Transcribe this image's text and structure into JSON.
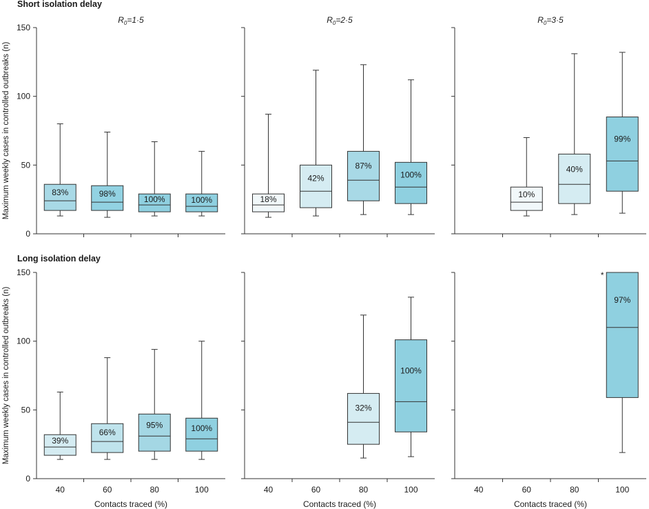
{
  "chart_data": [
    {
      "type": "box",
      "row_title": "Short isolation delay",
      "panel_title": {
        "base": "R",
        "sub": "0",
        "rest": "=1·5"
      },
      "xlabel": "Contacts traced (%)",
      "ylabel": "Maximum weekly cases in controlled outbreaks (n)",
      "ylim": [
        0,
        150
      ],
      "yticks": [
        "0",
        "50",
        "100",
        "150"
      ],
      "categories": [
        "40",
        "60",
        "80",
        "100"
      ],
      "boxes": [
        {
          "category": "40",
          "min": 13,
          "q1": 17,
          "median": 24,
          "q3": 36,
          "max": 80,
          "label": "83%",
          "fill": "#a8d9e6"
        },
        {
          "category": "60",
          "min": 12,
          "q1": 17,
          "median": 23,
          "q3": 35,
          "max": 74,
          "label": "98%",
          "fill": "#92d2e2"
        },
        {
          "category": "80",
          "min": 13,
          "q1": 16,
          "median": 21,
          "q3": 29,
          "max": 67,
          "label": "100%",
          "fill": "#8fd0e0"
        },
        {
          "category": "100",
          "min": 13,
          "q1": 16,
          "median": 20,
          "q3": 29,
          "max": 60,
          "label": "100%",
          "fill": "#8fd0e0"
        }
      ]
    },
    {
      "type": "box",
      "row_title": "",
      "panel_title": {
        "base": "R",
        "sub": "0",
        "rest": "=2·5"
      },
      "xlabel": "Contacts traced (%)",
      "ylabel": "",
      "ylim": [
        0,
        150
      ],
      "yticks": [
        "0",
        "50",
        "100",
        "150"
      ],
      "categories": [
        "40",
        "60",
        "80",
        "100"
      ],
      "boxes": [
        {
          "category": "40",
          "min": 12,
          "q1": 16,
          "median": 21,
          "q3": 29,
          "max": 87,
          "label": "18%",
          "fill": "#f1f8fa"
        },
        {
          "category": "60",
          "min": 13,
          "q1": 19,
          "median": 31,
          "q3": 50,
          "max": 119,
          "label": "42%",
          "fill": "#d5ecf2"
        },
        {
          "category": "80",
          "min": 14,
          "q1": 24,
          "median": 39,
          "q3": 60,
          "max": 123,
          "label": "87%",
          "fill": "#a8d9e6"
        },
        {
          "category": "100",
          "min": 14,
          "q1": 22,
          "median": 34,
          "q3": 52,
          "max": 112,
          "label": "100%",
          "fill": "#8fd0e0"
        }
      ]
    },
    {
      "type": "box",
      "row_title": "",
      "panel_title": {
        "base": "R",
        "sub": "0",
        "rest": "=3·5"
      },
      "xlabel": "Contacts traced (%)",
      "ylabel": "",
      "ylim": [
        0,
        150
      ],
      "yticks": [
        "0",
        "50",
        "100",
        "150"
      ],
      "categories": [
        "40",
        "60",
        "80",
        "100"
      ],
      "boxes": [
        {
          "category": "60",
          "min": 13,
          "q1": 17,
          "median": 23,
          "q3": 34,
          "max": 70,
          "label": "10%",
          "fill": "#f1f8fa"
        },
        {
          "category": "80",
          "min": 14,
          "q1": 22,
          "median": 36,
          "q3": 58,
          "max": 131,
          "label": "40%",
          "fill": "#d5ecf2"
        },
        {
          "category": "100",
          "min": 15,
          "q1": 31,
          "median": 53,
          "q3": 85,
          "max": 132,
          "label": "99%",
          "fill": "#8fd0e0"
        }
      ]
    },
    {
      "type": "box",
      "row_title": "Long isolation delay",
      "panel_title": null,
      "xlabel": "Contacts traced (%)",
      "ylabel": "Maximum weekly cases in controlled outbreaks (n)",
      "ylim": [
        0,
        150
      ],
      "yticks": [
        "0",
        "50",
        "100",
        "150"
      ],
      "categories": [
        "40",
        "60",
        "80",
        "100"
      ],
      "boxes": [
        {
          "category": "40",
          "min": 14,
          "q1": 17,
          "median": 23,
          "q3": 32,
          "max": 63,
          "label": "39%",
          "fill": "#d5ecf2"
        },
        {
          "category": "60",
          "min": 14,
          "q1": 19,
          "median": 27,
          "q3": 40,
          "max": 88,
          "label": "66%",
          "fill": "#bfe3ec"
        },
        {
          "category": "80",
          "min": 14,
          "q1": 20,
          "median": 31,
          "q3": 47,
          "max": 94,
          "label": "95%",
          "fill": "#a4d7e4"
        },
        {
          "category": "100",
          "min": 14,
          "q1": 20,
          "median": 29,
          "q3": 44,
          "max": 100,
          "label": "100%",
          "fill": "#8fd0e0"
        }
      ]
    },
    {
      "type": "box",
      "row_title": "",
      "panel_title": null,
      "xlabel": "Contacts traced (%)",
      "ylabel": "",
      "ylim": [
        0,
        150
      ],
      "yticks": [
        "0",
        "50",
        "100",
        "150"
      ],
      "categories": [
        "40",
        "60",
        "80",
        "100"
      ],
      "boxes": [
        {
          "category": "80",
          "min": 15,
          "q1": 25,
          "median": 41,
          "q3": 62,
          "max": 119,
          "label": "32%",
          "fill": "#d5ecf2"
        },
        {
          "category": "100",
          "min": 16,
          "q1": 34,
          "median": 56,
          "q3": 101,
          "max": 132,
          "label": "100%",
          "fill": "#8fd0e0"
        }
      ]
    },
    {
      "type": "box",
      "row_title": "",
      "panel_title": null,
      "xlabel": "Contacts traced (%)",
      "ylabel": "",
      "ylim": [
        0,
        150
      ],
      "yticks": [
        "0",
        "50",
        "100",
        "150"
      ],
      "categories": [
        "40",
        "60",
        "80",
        "100"
      ],
      "boxes": [
        {
          "category": "100",
          "min": 19,
          "q1": 59,
          "median": 110,
          "q3": 150,
          "max": 150,
          "label": "97%",
          "fill": "#8fd0e0",
          "marker": "*"
        }
      ]
    }
  ],
  "colors": {
    "axis": "#333333",
    "box_stroke": "#333333",
    "median": "#333333",
    "whisker": "#333333"
  }
}
